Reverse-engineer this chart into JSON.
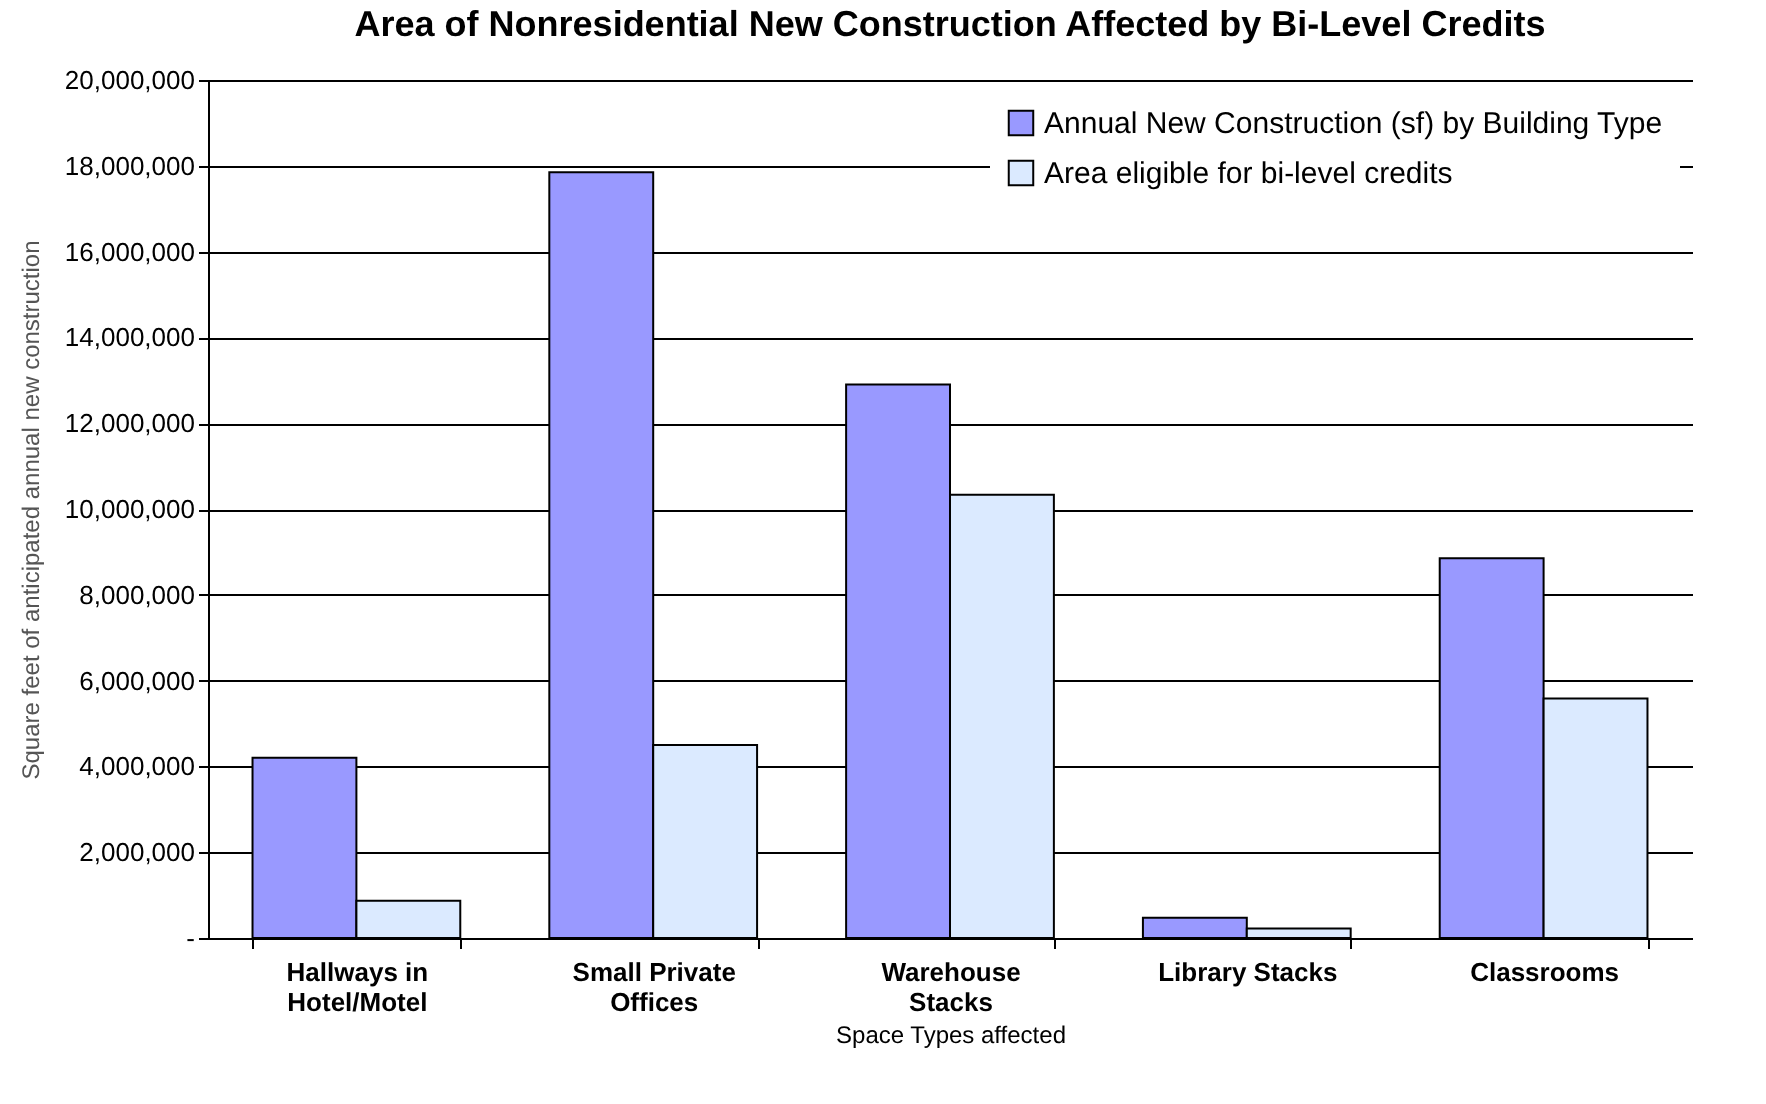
{
  "chart_data": {
    "type": "bar",
    "title": "Area of Nonresidential New Construction Affected by Bi-Level Credits",
    "xlabel": "Space Types affected",
    "ylabel": "Square feet of anticipated annual new construction",
    "categories": [
      "Hallways in Hotel/Motel",
      "Small Private Offices",
      "Warehouse Stacks",
      "Library Stacks",
      "Classrooms"
    ],
    "series": [
      {
        "name": "Annual New Construction (sf) by Building Type",
        "color": "#9999ff",
        "values": [
          4200000,
          17850000,
          12900000,
          470000,
          8850000
        ]
      },
      {
        "name": "Area eligible for bi-level credits",
        "color": "#dbeaff",
        "values": [
          870000,
          4500000,
          10330000,
          220000,
          5580000
        ]
      }
    ],
    "ylim": [
      0,
      20000000
    ],
    "yticks": [
      {
        "value": 0,
        "label": "-"
      },
      {
        "value": 2000000,
        "label": "2,000,000"
      },
      {
        "value": 4000000,
        "label": "4,000,000"
      },
      {
        "value": 6000000,
        "label": "6,000,000"
      },
      {
        "value": 8000000,
        "label": "8,000,000"
      },
      {
        "value": 10000000,
        "label": "10,000,000"
      },
      {
        "value": 12000000,
        "label": "12,000,000"
      },
      {
        "value": 14000000,
        "label": "14,000,000"
      },
      {
        "value": 16000000,
        "label": "16,000,000"
      },
      {
        "value": 18000000,
        "label": "18,000,000"
      },
      {
        "value": 20000000,
        "label": "20,000,000"
      }
    ],
    "grid": "y",
    "legend": "top right"
  }
}
